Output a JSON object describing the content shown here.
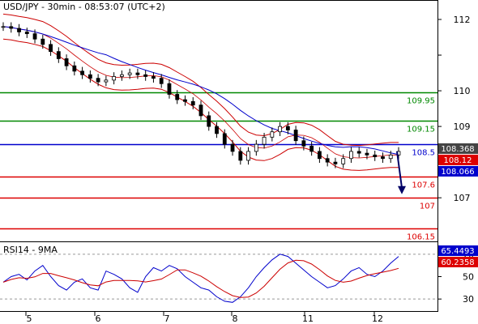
{
  "chart_data": [
    {
      "type": "candlestick",
      "title": "USD/JPY - 30min - 08:53:07 (UTC+2)",
      "x_ticks": [
        "5",
        "6",
        "7",
        "8",
        "11",
        "12"
      ],
      "y_ticks": [
        107,
        108,
        109,
        110,
        111,
        112
      ],
      "y_tick_labels": [
        "107",
        "",
        "109",
        "110",
        "",
        "112"
      ],
      "ylim": [
        105.8,
        112.5
      ],
      "grid": false,
      "close_series": [
        111.8,
        111.75,
        111.65,
        111.6,
        111.45,
        111.3,
        111.1,
        110.9,
        110.7,
        110.55,
        110.45,
        110.35,
        110.25,
        110.3,
        110.4,
        110.45,
        110.5,
        110.45,
        110.4,
        110.35,
        110.2,
        109.9,
        109.75,
        109.7,
        109.6,
        109.3,
        109.0,
        108.8,
        108.5,
        108.3,
        108.05,
        108.3,
        108.5,
        108.7,
        108.85,
        109.0,
        108.9,
        108.6,
        108.45,
        108.3,
        108.1,
        108.0,
        107.95,
        108.1,
        108.3,
        108.25,
        108.2,
        108.15,
        108.1,
        108.2,
        108.3
      ],
      "levels": [
        {
          "label": "109.95",
          "value": 109.95,
          "color": "#008800"
        },
        {
          "label": "109.15",
          "value": 109.15,
          "color": "#008800"
        },
        {
          "label": "108.5",
          "value": 108.5,
          "color": "#0000cc"
        },
        {
          "label": "107.6",
          "value": 107.6,
          "color": "#dd0000"
        },
        {
          "label": "107",
          "value": 107.0,
          "color": "#dd0000"
        },
        {
          "label": "106.15",
          "value": 106.15,
          "color": "#dd0000"
        }
      ],
      "price_badges": [
        {
          "label": "108.368",
          "value": 108.368,
          "color": "#444444"
        },
        {
          "label": "108.12",
          "value": 108.12,
          "color": "#dd0000"
        },
        {
          "label": "108.066",
          "value": 108.066,
          "color": "#0000cc"
        }
      ],
      "forecast_arrow": {
        "from": 108.3,
        "to": 107.1,
        "color": "#000066"
      }
    },
    {
      "type": "line",
      "title": "RSI14 - 9MA",
      "y_ticks": [
        30,
        50,
        70
      ],
      "ylim": [
        20,
        80
      ],
      "dashed_levels": [
        30,
        70
      ],
      "rsi_values": [
        45,
        50,
        52,
        47,
        55,
        60,
        50,
        42,
        38,
        45,
        48,
        40,
        38,
        55,
        52,
        48,
        40,
        36,
        50,
        58,
        55,
        60,
        57,
        50,
        45,
        40,
        38,
        32,
        28,
        27,
        32,
        40,
        50,
        58,
        65,
        70,
        68,
        62,
        56,
        50,
        45,
        40,
        42,
        48,
        55,
        58,
        52,
        50,
        55,
        62,
        68
      ],
      "badges": [
        {
          "label": "65.4493",
          "value": 65.4493,
          "color": "#0000cc"
        },
        {
          "label": "60.2358",
          "value": 60.2358,
          "color": "#dd0000"
        }
      ]
    }
  ]
}
